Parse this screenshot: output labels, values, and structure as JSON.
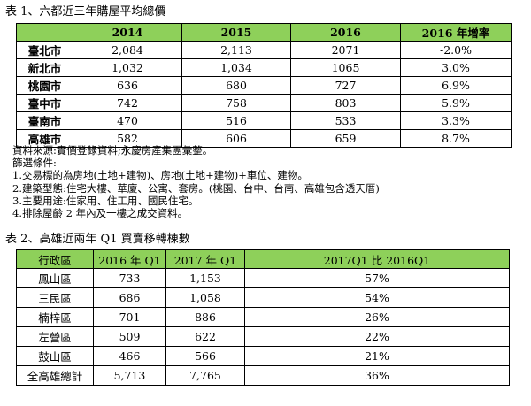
{
  "table1": {
    "caption": "表 1、六都近三年購屋平均總價",
    "headers": [
      "",
      "2014",
      "2015",
      "2016",
      "2016 年增率"
    ],
    "rows": [
      [
        "臺北市",
        "2,084",
        "2,113",
        "2071",
        "-2.0%"
      ],
      [
        "新北市",
        "1,032",
        "1,034",
        "1065",
        "3.0%"
      ],
      [
        "桃園市",
        "636",
        "680",
        "727",
        "6.9%"
      ],
      [
        "臺中市",
        "742",
        "758",
        "803",
        "5.9%"
      ],
      [
        "臺南市",
        "470",
        "516",
        "533",
        "3.3%"
      ],
      [
        "高雄市",
        "582",
        "606",
        "659",
        "8.7%"
      ]
    ]
  },
  "notes": [
    "資料來源:實價登錄資料;永慶房產集團彙整。",
    "篩選條件:",
    "1.交易標的為房地(土地+建物)、房地(土地+建物)+車位、建物。",
    "2.建築型態:住宅大樓、華廈、公寓、套房。(桃園、台中、台南、高雄包含透天厝)",
    "3.主要用途:住家用、住工用、國民住宅。",
    "4.排除屋齡 2 年內及一樓之成交資料。"
  ],
  "table2": {
    "caption": "表 2、高雄近兩年 Q1 買賣移轉棟數",
    "headers": [
      "行政區",
      "2016 年 Q1",
      "2017 年 Q1",
      "2017Q1 比 2016Q1"
    ],
    "rows": [
      [
        "鳳山區",
        "733",
        "1,153",
        "57%"
      ],
      [
        "三民區",
        "686",
        "1,058",
        "54%"
      ],
      [
        "楠梓區",
        "701",
        "886",
        "26%"
      ],
      [
        "左營區",
        "509",
        "622",
        "22%"
      ],
      [
        "鼓山區",
        "466",
        "566",
        "21%"
      ],
      [
        "全高雄總計",
        "5,713",
        "7,765",
        "36%"
      ]
    ]
  },
  "colors": {
    "header_bg": "#8ed05a"
  }
}
